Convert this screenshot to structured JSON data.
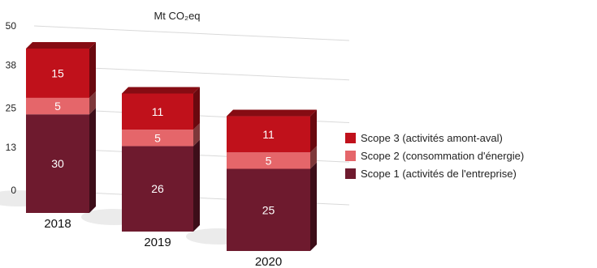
{
  "chart_data": {
    "type": "bar",
    "stacked": true,
    "unit_label": "Mt CO₂eq",
    "categories": [
      "2018",
      "2019",
      "2020"
    ],
    "series": [
      {
        "name": "Scope 1 (activités de l'entreprise)",
        "values": [
          30,
          26,
          25
        ],
        "color": "#6e1a2e"
      },
      {
        "name": "Scope 2 (consommation d'énergie)",
        "values": [
          5,
          5,
          5
        ],
        "color": "#e5666a"
      },
      {
        "name": "Scope 3 (activités amont-aval)",
        "values": [
          15,
          11,
          11
        ],
        "color": "#c0111b"
      }
    ],
    "y_ticks": [
      "0",
      "13",
      "25",
      "38",
      "50"
    ],
    "ylim": [
      0,
      50
    ],
    "grid": true,
    "legend_position": "right"
  }
}
